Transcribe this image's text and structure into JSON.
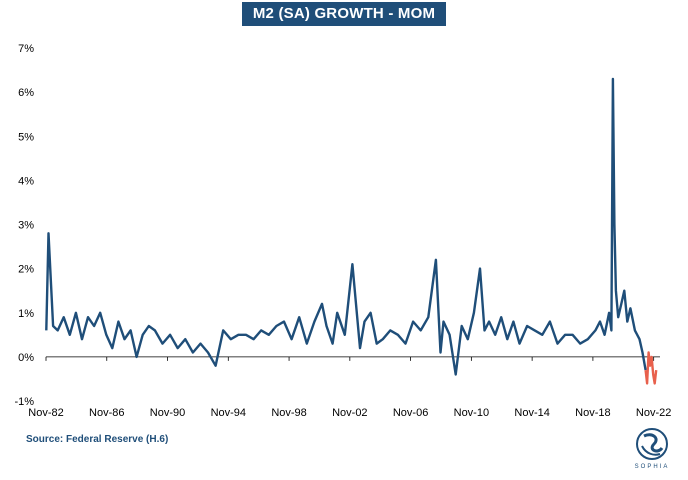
{
  "chart_data": {
    "type": "line",
    "title": "M2 (SA) GROWTH - MOM",
    "ylabel": "",
    "xlabel": "",
    "ylim": [
      -1,
      7
    ],
    "yticks": [
      -1,
      0,
      1,
      2,
      3,
      4,
      5,
      6,
      7
    ],
    "ytick_labels": [
      "-1%",
      "0%",
      "1%",
      "2%",
      "3%",
      "4%",
      "5%",
      "6%",
      "7%"
    ],
    "xlim": [
      1982.833,
      2023.25
    ],
    "xticks": [
      1982.833,
      1986.833,
      1990.833,
      1994.833,
      1998.833,
      2002.833,
      2006.833,
      2010.833,
      2014.833,
      2018.833,
      2022.833
    ],
    "xtick_labels": [
      "Nov-82",
      "Nov-86",
      "Nov-90",
      "Nov-94",
      "Nov-98",
      "Nov-02",
      "Nov-06",
      "Nov-10",
      "Nov-14",
      "Nov-18",
      "Nov-22"
    ],
    "grid": false,
    "colors": {
      "line": "#1f4e79",
      "recent": "#e8604c"
    },
    "series": [
      {
        "x": [
          1982.85,
          1983.0,
          1983.3,
          1983.6,
          1984.0,
          1984.4,
          1984.8,
          1985.2,
          1985.6,
          1986.0,
          1986.4,
          1986.8,
          1987.2,
          1987.6,
          1988.0,
          1988.4,
          1988.8,
          1989.2,
          1989.6,
          1990.0,
          1990.5,
          1991.0,
          1991.5,
          1992.0,
          1992.5,
          1993.0,
          1993.5,
          1994.0,
          1994.5,
          1995.0,
          1995.5,
          1996.0,
          1996.5,
          1997.0,
          1997.5,
          1998.0,
          1998.5,
          1999.0,
          1999.5,
          2000.0,
          2000.5,
          2001.0,
          2001.3,
          2001.7,
          2002.0,
          2002.5,
          2003.0,
          2003.5,
          2003.8,
          2004.2,
          2004.6,
          2005.0,
          2005.5,
          2006.0,
          2006.5,
          2007.0,
          2007.5,
          2008.0,
          2008.5,
          2008.8,
          2009.0,
          2009.4,
          2009.8,
          2010.2,
          2010.6,
          2011.0,
          2011.4,
          2011.7,
          2012.0,
          2012.4,
          2012.8,
          2013.2,
          2013.6,
          2014.0,
          2014.5,
          2015.0,
          2015.5,
          2016.0,
          2016.5,
          2017.0,
          2017.5,
          2018.0,
          2018.5,
          2019.0,
          2019.3,
          2019.6,
          2019.9,
          2020.05,
          2020.15,
          2020.25,
          2020.35,
          2020.5,
          2020.7,
          2020.9,
          2021.1,
          2021.3,
          2021.6,
          2021.9,
          2022.1,
          2022.3
        ],
        "values": [
          0.6,
          2.8,
          0.7,
          0.6,
          0.9,
          0.5,
          1.0,
          0.4,
          0.9,
          0.7,
          1.0,
          0.5,
          0.2,
          0.8,
          0.4,
          0.6,
          0.0,
          0.5,
          0.7,
          0.6,
          0.3,
          0.5,
          0.2,
          0.4,
          0.1,
          0.3,
          0.1,
          -0.2,
          0.6,
          0.4,
          0.5,
          0.5,
          0.4,
          0.6,
          0.5,
          0.7,
          0.8,
          0.4,
          0.9,
          0.3,
          0.8,
          1.2,
          0.7,
          0.3,
          1.0,
          0.5,
          2.1,
          0.2,
          0.8,
          1.0,
          0.3,
          0.4,
          0.6,
          0.5,
          0.3,
          0.8,
          0.6,
          0.9,
          2.2,
          0.1,
          0.8,
          0.5,
          -0.4,
          0.7,
          0.4,
          1.0,
          2.0,
          0.6,
          0.8,
          0.5,
          0.9,
          0.4,
          0.8,
          0.3,
          0.7,
          0.6,
          0.5,
          0.8,
          0.3,
          0.5,
          0.5,
          0.3,
          0.4,
          0.6,
          0.8,
          0.5,
          1.0,
          0.6,
          6.3,
          3.0,
          1.5,
          0.9,
          1.2,
          1.5,
          0.8,
          1.1,
          0.6,
          0.4,
          0.1,
          -0.3
        ]
      },
      {
        "x": [
          2022.3,
          2022.4,
          2022.5,
          2022.6,
          2022.7,
          2022.8,
          2022.9,
          2023.0
        ],
        "values": [
          -0.3,
          -0.6,
          0.1,
          -0.2,
          0.0,
          -0.4,
          -0.6,
          -0.3
        ]
      }
    ]
  },
  "source": "Source: Federal Reserve (H.6)",
  "logo": {
    "icon": "sophia-logo",
    "text": "SOPHIA"
  }
}
